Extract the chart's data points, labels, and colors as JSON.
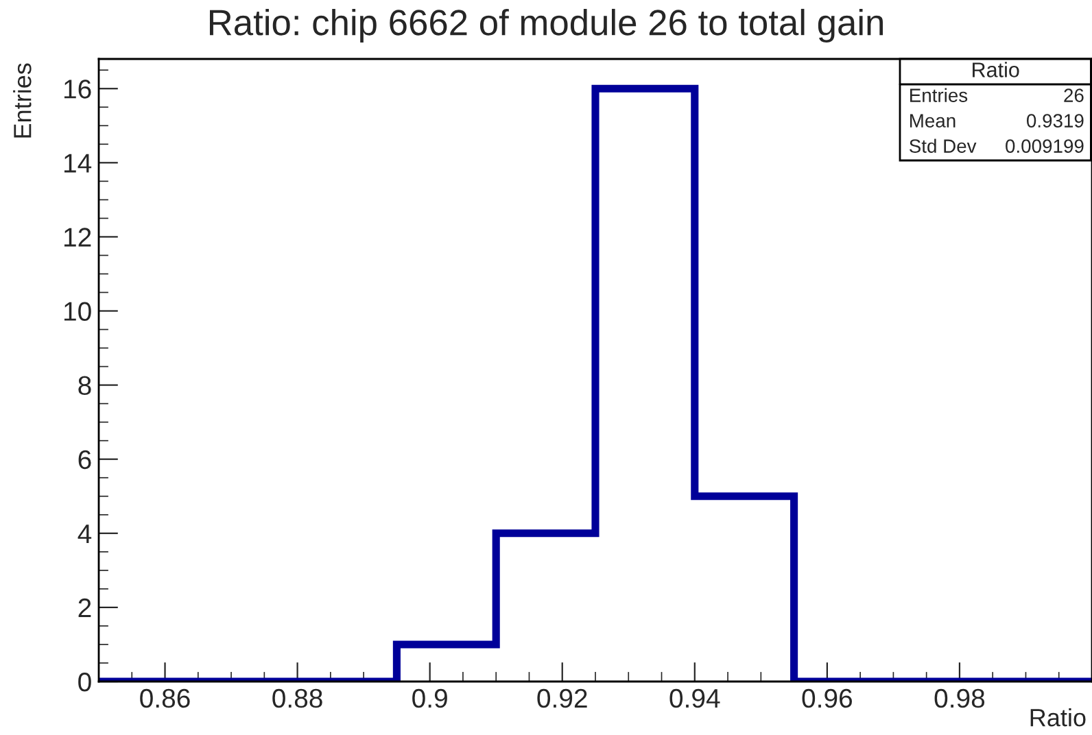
{
  "chart_data": {
    "type": "histogram",
    "title": "Ratio: chip 6662 of module 26 to total gain",
    "xlabel": "Ratio",
    "ylabel": "Entries",
    "bins": [
      0.85,
      0.865,
      0.88,
      0.895,
      0.91,
      0.925,
      0.94,
      0.955,
      0.97,
      0.985,
      1.0
    ],
    "values": [
      0,
      0,
      0,
      1,
      4,
      16,
      5,
      0,
      0,
      0
    ],
    "color": "#000099",
    "xlim": [
      0.85,
      1.0
    ],
    "xticks": [
      0.86,
      0.88,
      0.9,
      0.92,
      0.94,
      0.96,
      0.98
    ],
    "ylim": [
      0,
      16.8
    ],
    "yticks": [
      0,
      2,
      4,
      6,
      8,
      10,
      12,
      14,
      16
    ],
    "grid": false,
    "annotations": [
      "Ratio",
      "Entries",
      "26",
      "Mean",
      "0.9319",
      "Std Dev",
      "0.009199"
    ]
  }
}
